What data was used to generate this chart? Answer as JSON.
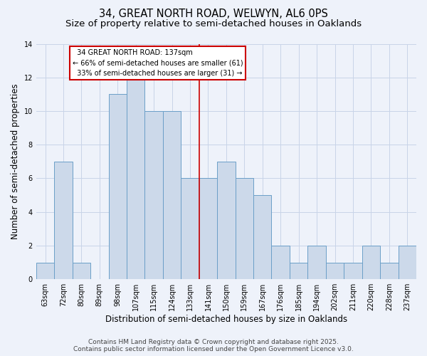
{
  "title_line1": "34, GREAT NORTH ROAD, WELWYN, AL6 0PS",
  "title_line2": "Size of property relative to semi-detached houses in Oaklands",
  "xlabel": "Distribution of semi-detached houses by size in Oaklands",
  "ylabel": "Number of semi-detached properties",
  "categories": [
    "63sqm",
    "72sqm",
    "80sqm",
    "89sqm",
    "98sqm",
    "107sqm",
    "115sqm",
    "124sqm",
    "133sqm",
    "141sqm",
    "150sqm",
    "159sqm",
    "167sqm",
    "176sqm",
    "185sqm",
    "194sqm",
    "202sqm",
    "211sqm",
    "220sqm",
    "228sqm",
    "237sqm"
  ],
  "values": [
    1,
    7,
    1,
    0,
    11,
    12,
    10,
    10,
    6,
    6,
    7,
    6,
    5,
    2,
    1,
    2,
    1,
    1,
    2,
    1,
    2
  ],
  "bar_color": "#ccd9ea",
  "bar_edge_color": "#6b9fc8",
  "ylim": [
    0,
    14
  ],
  "yticks": [
    0,
    2,
    4,
    6,
    8,
    10,
    12,
    14
  ],
  "vline_index": 8.5,
  "vline_color": "#cc0000",
  "grid_color": "#c8d4e8",
  "background_color": "#eef2fa",
  "subject_label": "34 GREAT NORTH ROAD: 137sqm",
  "pct_smaller": 66,
  "count_smaller": 61,
  "pct_larger": 33,
  "count_larger": 31,
  "annotation_box_color": "#cc0000",
  "footer_line1": "Contains HM Land Registry data © Crown copyright and database right 2025.",
  "footer_line2": "Contains public sector information licensed under the Open Government Licence v3.0.",
  "title_fontsize": 10.5,
  "subtitle_fontsize": 9.5,
  "tick_fontsize": 7,
  "label_fontsize": 8.5,
  "footer_fontsize": 6.5,
  "ann_fontsize": 7
}
